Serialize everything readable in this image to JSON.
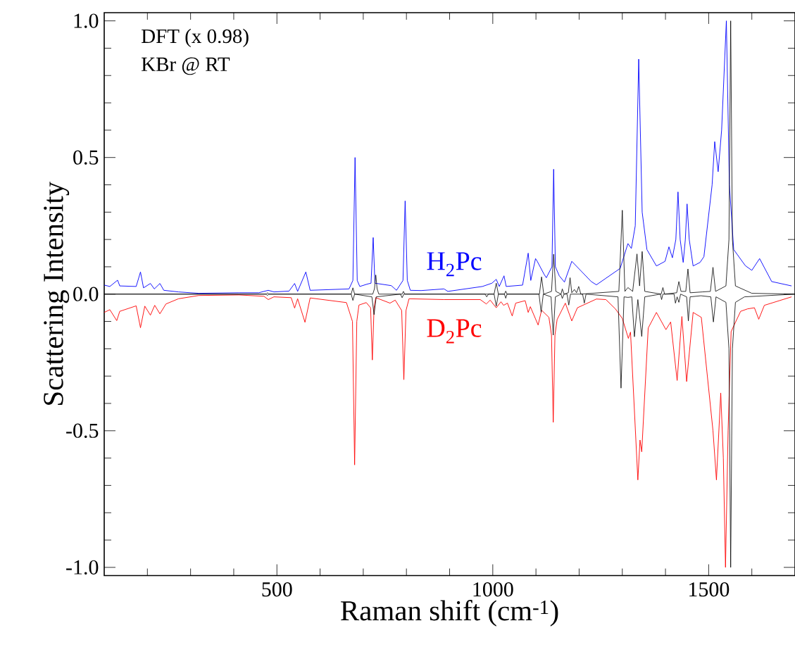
{
  "chart_data": {
    "type": "line",
    "xlabel": "Raman shift (cm$^{-1}$)",
    "ylabel": "Scattering Intensity",
    "annotations": [
      "DFT (x 0.98)",
      "KBr @ RT"
    ],
    "xlim": [
      100,
      1700
    ],
    "ylim": [
      -1.03,
      1.03
    ],
    "xticks": [
      {
        "value": 200,
        "label": null
      },
      {
        "value": 300,
        "label": null
      },
      {
        "value": 400,
        "label": null
      },
      500,
      {
        "value": 600,
        "label": null
      },
      {
        "value": 700,
        "label": null
      },
      {
        "value": 800,
        "label": null
      },
      {
        "value": 900,
        "label": null
      },
      1000,
      {
        "value": 1100,
        "label": null
      },
      {
        "value": 1200,
        "label": null
      },
      {
        "value": 1300,
        "label": null
      },
      {
        "value": 1400,
        "label": null
      },
      1500,
      {
        "value": 1600,
        "label": null
      }
    ],
    "yticks": [
      {
        "value": -1.0,
        "label": "-1.0"
      },
      {
        "value": -0.9,
        "label": null
      },
      {
        "value": -0.8,
        "label": null
      },
      {
        "value": -0.7,
        "label": null
      },
      {
        "value": -0.6,
        "label": null
      },
      {
        "value": -0.5,
        "label": "-0.5"
      },
      {
        "value": -0.4,
        "label": null
      },
      {
        "value": -0.3,
        "label": null
      },
      {
        "value": -0.2,
        "label": null
      },
      {
        "value": -0.1,
        "label": null
      },
      {
        "value": 0.0,
        "label": "0.0"
      },
      {
        "value": 0.1,
        "label": null
      },
      {
        "value": 0.2,
        "label": null
      },
      {
        "value": 0.3,
        "label": null
      },
      {
        "value": 0.4,
        "label": null
      },
      {
        "value": 0.5,
        "label": "0.5"
      },
      {
        "value": 0.6,
        "label": null
      },
      {
        "value": 0.7,
        "label": null
      },
      {
        "value": 0.8,
        "label": null
      },
      {
        "value": 0.9,
        "label": null
      },
      {
        "value": 1.0,
        "label": "1.0"
      }
    ],
    "series": [
      {
        "name": "H$_{2}$Pc",
        "color": "#0000ff",
        "x": [
          100,
          113,
          131,
          136,
          174,
          184,
          191,
          207,
          216,
          229,
          238,
          272,
          319,
          412,
          458,
          480,
          493,
          528,
          541,
          548,
          567,
          577,
          667,
          676,
          681,
          686,
          692,
          710,
          718,
          723,
          727,
          765,
          777,
          792,
          797,
          802,
          809,
          834,
          887,
          896,
          976,
          998,
          1008,
          1015,
          1026,
          1031,
          1069,
          1082,
          1088,
          1099,
          1103,
          1119,
          1124,
          1137,
          1141,
          1145,
          1154,
          1166,
          1183,
          1228,
          1240,
          1295,
          1313,
          1321,
          1330,
          1338,
          1346,
          1357,
          1379,
          1399,
          1408,
          1416,
          1424,
          1429,
          1434,
          1441,
          1446,
          1450,
          1455,
          1464,
          1480,
          1489,
          1508,
          1514,
          1522,
          1530,
          1541,
          1548,
          1558,
          1585,
          1600,
          1618,
          1646,
          1692
        ],
        "values": [
          0.033,
          0.028,
          0.051,
          0.03,
          0.028,
          0.081,
          0.023,
          0.039,
          0.019,
          0.039,
          0.014,
          0.008,
          0.003,
          0.005,
          0.005,
          0.014,
          0.008,
          0.011,
          0.039,
          0.01,
          0.081,
          0.014,
          0.019,
          0.05,
          0.5,
          0.05,
          0.028,
          0.037,
          0.04,
          0.207,
          0.04,
          0.031,
          0.014,
          0.05,
          0.341,
          0.05,
          0.014,
          0.013,
          0.019,
          0.01,
          0.028,
          0.04,
          0.054,
          0.028,
          0.067,
          0.028,
          0.033,
          0.15,
          0.05,
          0.13,
          0.12,
          0.072,
          0.06,
          0.1,
          0.457,
          0.1,
          0.067,
          0.044,
          0.12,
          0.046,
          0.034,
          0.094,
          0.185,
          0.167,
          0.25,
          0.86,
          0.3,
          0.163,
          0.103,
          0.12,
          0.173,
          0.133,
          0.2,
          0.374,
          0.2,
          0.116,
          0.2,
          0.33,
          0.2,
          0.103,
          0.116,
          0.137,
          0.4,
          0.558,
          0.448,
          0.6,
          1.0,
          0.4,
          0.163,
          0.104,
          0.087,
          0.13,
          0.046,
          0.03
        ]
      },
      {
        "name": "D$_{2}$Pc",
        "color": "#ff0000",
        "x": [
          100,
          113,
          129,
          136,
          174,
          184,
          194,
          207,
          217,
          229,
          243,
          272,
          319,
          412,
          470,
          480,
          493,
          533,
          541,
          548,
          565,
          577,
          661,
          675,
          680,
          685,
          690,
          707,
          717,
          721,
          725,
          729,
          762,
          774,
          789,
          794,
          799,
          806,
          887,
          971,
          985,
          994,
          1008,
          1019,
          1025,
          1034,
          1045,
          1053,
          1075,
          1082,
          1087,
          1105,
          1113,
          1130,
          1136,
          1140,
          1144,
          1149,
          1168,
          1183,
          1196,
          1240,
          1262,
          1284,
          1300,
          1314,
          1319,
          1336,
          1341,
          1345,
          1360,
          1379,
          1401,
          1412,
          1427,
          1438,
          1449,
          1464,
          1483,
          1510,
          1518,
          1528,
          1534,
          1539,
          1545,
          1552,
          1574,
          1590,
          1606,
          1616,
          1629,
          1692
        ],
        "values": [
          -0.067,
          -0.057,
          -0.097,
          -0.063,
          -0.043,
          -0.123,
          -0.044,
          -0.077,
          -0.041,
          -0.072,
          -0.036,
          -0.017,
          -0.005,
          -0.003,
          -0.008,
          -0.02,
          -0.01,
          -0.013,
          -0.051,
          -0.017,
          -0.103,
          -0.014,
          -0.031,
          -0.1,
          -0.625,
          -0.1,
          -0.04,
          -0.031,
          -0.05,
          -0.241,
          -0.05,
          -0.013,
          -0.033,
          -0.022,
          -0.06,
          -0.313,
          -0.06,
          -0.017,
          -0.02,
          -0.02,
          -0.036,
          -0.022,
          -0.05,
          -0.028,
          -0.041,
          -0.033,
          -0.08,
          -0.033,
          -0.024,
          -0.067,
          -0.046,
          -0.113,
          -0.059,
          -0.085,
          -0.15,
          -0.469,
          -0.15,
          -0.093,
          -0.033,
          -0.098,
          -0.05,
          -0.018,
          -0.02,
          -0.054,
          -0.089,
          -0.162,
          -0.139,
          -0.68,
          -0.534,
          -0.577,
          -0.124,
          -0.067,
          -0.13,
          -0.102,
          -0.316,
          -0.082,
          -0.32,
          -0.067,
          -0.085,
          -0.5,
          -0.68,
          -0.362,
          -0.6,
          -1.0,
          -0.5,
          -0.137,
          -0.063,
          -0.054,
          -0.05,
          -0.092,
          -0.041,
          -0.01
        ]
      },
      {
        "color": "#000000",
        "x": [
          100,
          475,
          478,
          481,
          672,
          676,
          680,
          722,
          726,
          729,
          732,
          736,
          790,
          793,
          796,
          1003,
          1008,
          1013,
          1027,
          1030,
          1033,
          1108,
          1113,
          1118,
          1136,
          1141,
          1146,
          1158,
          1161,
          1165,
          1175,
          1179,
          1183,
          1189,
          1194,
          1199,
          1204,
          1292,
          1300,
          1306,
          1313,
          1324,
          1334,
          1340,
          1346,
          1352,
          1390,
          1394,
          1398,
          1426,
          1431,
          1436,
          1447,
          1452,
          1457,
          1485,
          1504,
          1510,
          1516,
          1540,
          1547,
          1551,
          1555,
          1562,
          1600,
          1700
        ],
        "values": [
          0,
          0,
          0.005,
          0,
          0,
          0.023,
          0,
          0,
          0.02,
          0.07,
          0.02,
          0,
          0,
          0.01,
          0,
          0,
          0.04,
          0,
          0,
          0.011,
          0,
          0,
          0.063,
          0,
          0.01,
          0.146,
          0.01,
          0,
          0.019,
          0,
          0.005,
          0.06,
          0.005,
          0.017,
          0.005,
          0.028,
          0,
          0.01,
          0.307,
          0.01,
          0.024,
          0.01,
          0.147,
          0.03,
          0.156,
          0.01,
          0,
          0.024,
          0,
          0.005,
          0.046,
          0.01,
          0.01,
          0.092,
          0.005,
          0.008,
          0.01,
          0.098,
          0.01,
          0.03,
          0.2,
          1.0,
          0.2,
          0.03,
          0.003,
          0
        ]
      },
      {
        "color": "#000000",
        "x": [
          100,
          475,
          478,
          481,
          672,
          676,
          680,
          720,
          725,
          730,
          786,
          790,
          794,
          982,
          986,
          990,
          1003,
          1008,
          1013,
          1027,
          1030,
          1033,
          1107,
          1112,
          1117,
          1135,
          1140,
          1145,
          1158,
          1161,
          1165,
          1172,
          1176,
          1180,
          1208,
          1212,
          1216,
          1290,
          1297,
          1304,
          1313,
          1322,
          1328,
          1336,
          1345,
          1352,
          1388,
          1391,
          1394,
          1420,
          1423,
          1427,
          1431,
          1435,
          1449,
          1453,
          1457,
          1482,
          1505,
          1511,
          1517,
          1540,
          1547,
          1551,
          1555,
          1562,
          1583,
          1700
        ],
        "values": [
          0,
          0,
          -0.005,
          0,
          0,
          -0.023,
          0,
          -0.01,
          -0.075,
          -0.01,
          0,
          -0.013,
          0,
          0,
          -0.01,
          0,
          0,
          -0.044,
          0,
          0,
          -0.015,
          0,
          0,
          -0.066,
          0,
          -0.01,
          -0.15,
          -0.01,
          0,
          -0.016,
          0,
          0,
          -0.04,
          0,
          0,
          -0.033,
          0,
          -0.01,
          -0.344,
          -0.01,
          -0.012,
          -0.01,
          -0.156,
          -0.02,
          -0.155,
          -0.01,
          0,
          -0.02,
          0,
          0,
          -0.033,
          -0.01,
          -0.03,
          0,
          -0.01,
          -0.098,
          -0.01,
          -0.006,
          -0.01,
          -0.102,
          -0.01,
          -0.03,
          -0.2,
          -1.0,
          -0.2,
          -0.03,
          -0.01,
          0
        ]
      }
    ]
  }
}
